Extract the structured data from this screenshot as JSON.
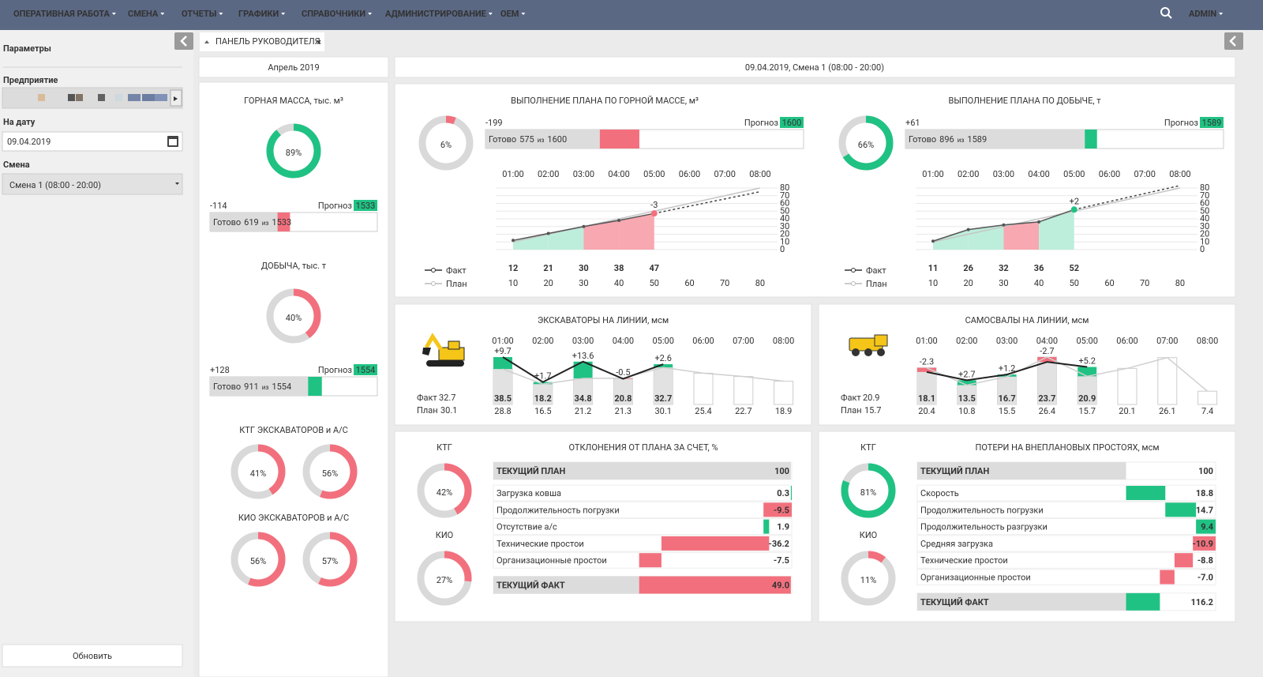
{
  "nav": {
    "items": [
      "ОПЕРАТИВНАЯ РАБОТА",
      "СМЕНА",
      "ОТЧЕТЫ",
      "ГРАФИКИ",
      "СПРАВОЧНИКИ",
      "АДМИНИСТРИРОВАНИЕ",
      "OEM"
    ],
    "user": "ADMIN"
  },
  "sidebar": {
    "title": "Параметры",
    "enterprise_label": "Предприятие",
    "date_label": "На дату",
    "date": "09.04.2019",
    "shift_label": "Смена",
    "shift": "Смена 1 (08:00 - 20:00)",
    "button": "Обновить"
  },
  "tab": "ПАНЕЛЬ РУКОВОДИТЕЛЯ",
  "month_header": "Апрель 2019",
  "shift_header": "09.04.2019, Смена 1 (08:00 - 20:00)",
  "summary": {
    "rock_mass": {
      "title": "ГОРНАЯ МАССА, тыс. м³",
      "percent": {
        "value": 89,
        "label": "89%"
      },
      "color": "#20c283",
      "deviation": -114,
      "forecast_label": "Прогноз",
      "forecast": 1533,
      "ready_label": "Готово",
      "ready": 619,
      "of_label": "из",
      "plan": 1533
    },
    "production": {
      "title": "ДОБЫЧА, тыс. т",
      "percent": {
        "value": 40,
        "label": "40%"
      },
      "color": "#f2707d",
      "deviation": {
        "value": 128,
        "label": "+128"
      },
      "forecast_label": "Прогноз",
      "forecast": 1554,
      "ready_label": "Готово",
      "ready": 911,
      "of_label": "из",
      "plan": 1554
    },
    "ktg": {
      "title": "КТГ ЭКСКАВАТОРОВ и А/С",
      "values": [
        {
          "value": 41,
          "label": "41%"
        },
        {
          "value": 56,
          "label": "56%"
        }
      ],
      "colors": [
        "#f2707d",
        "#f2707d"
      ]
    },
    "kio": {
      "title": "КИО ЭКСКАВАТОРОВ и А/С",
      "values": [
        {
          "value": 56,
          "label": "56%"
        },
        {
          "value": 57,
          "label": "57%"
        }
      ],
      "colors": [
        "#f2707d",
        "#f2707d"
      ]
    }
  },
  "plan_charts": [
    {
      "title": "ВЫПОЛНЕНИЕ ПЛАНА ПО ГОРНОЙ МАССЕ, м³",
      "percent": {
        "value": 6,
        "label": "6%"
      },
      "color": "#f2707d",
      "deviation": -199,
      "forecast_label": "Прогноз",
      "forecast": 1600,
      "ready_label": "Готово",
      "ready": 575,
      "of_label": "из",
      "plan": 1600,
      "hours": [
        "01:00",
        "02:00",
        "03:00",
        "04:00",
        "05:00",
        "06:00",
        "07:00",
        "08:00"
      ],
      "ylim": [
        0,
        80
      ],
      "yticks": [
        0,
        10,
        20,
        30,
        40,
        50,
        60,
        70,
        80
      ],
      "fact": [
        12,
        21,
        30,
        38,
        47,
        null,
        null,
        null
      ],
      "plan_values": [
        10,
        20,
        30,
        40,
        50,
        60,
        70,
        80
      ],
      "annotation": -3,
      "legend_fact": "Факт",
      "legend_plan": "План"
    },
    {
      "title": "ВЫПОЛНЕНИЕ ПЛАНА ПО ДОБЫЧЕ, т",
      "percent": {
        "value": 66,
        "label": "66%"
      },
      "color": "#20c283",
      "deviation": {
        "value": 61,
        "label": "+61"
      },
      "forecast_label": "Прогноз",
      "forecast": 1589,
      "ready_label": "Готово",
      "ready": 896,
      "of_label": "из",
      "plan": 1589,
      "hours": [
        "01:00",
        "02:00",
        "03:00",
        "04:00",
        "05:00",
        "06:00",
        "07:00",
        "08:00"
      ],
      "ylim": [
        0,
        80
      ],
      "yticks": [
        0,
        10,
        20,
        30,
        40,
        50,
        60,
        70,
        80
      ],
      "fact": [
        11,
        26,
        32,
        36,
        52,
        null,
        null,
        null
      ],
      "plan_values": [
        10,
        20,
        30,
        40,
        50,
        60,
        70,
        80
      ],
      "annotation": {
        "value": 2,
        "label": "+2"
      },
      "legend_fact": "Факт",
      "legend_plan": "План"
    }
  ],
  "line_charts": [
    {
      "title": "ЭКСКАВАТОРЫ НА ЛИНИИ, мсм",
      "fact_label": "Факт",
      "fact_total": 32.7,
      "plan_label": "План",
      "plan_total": 30.1,
      "hours": [
        "01:00",
        "02:00",
        "03:00",
        "04:00",
        "05:00",
        "06:00",
        "07:00",
        "08:00"
      ],
      "fact": [
        38.5,
        18.2,
        34.8,
        20.8,
        32.7,
        null,
        null,
        null
      ],
      "plan": [
        28.8,
        16.5,
        21.2,
        21.3,
        30.1,
        25.4,
        22.7,
        18.9
      ],
      "deviations": [
        {
          "value": 9.7,
          "label": "+9.7"
        },
        {
          "value": 1.7,
          "label": "+1.7"
        },
        {
          "value": 13.6,
          "label": "+13.6"
        },
        -0.5,
        {
          "value": 2.6,
          "label": "+2.6"
        },
        null,
        null,
        null
      ]
    },
    {
      "title": "САМОСВАЛЫ НА ЛИНИИ, мсм",
      "fact_label": "Факт",
      "fact_total": 20.9,
      "plan_label": "План",
      "plan_total": 15.7,
      "hours": [
        "01:00",
        "02:00",
        "03:00",
        "04:00",
        "05:00",
        "06:00",
        "07:00",
        "08:00"
      ],
      "fact": [
        18.1,
        13.5,
        16.7,
        23.7,
        20.9,
        null,
        null,
        null
      ],
      "plan": [
        20.4,
        10.8,
        15.5,
        26.4,
        15.7,
        20.1,
        26.1,
        7.4
      ],
      "deviations": [
        -2.3,
        {
          "value": 2.7,
          "label": "+2.7"
        },
        {
          "value": 1.2,
          "label": "+1.2"
        },
        -2.7,
        {
          "value": 5.2,
          "label": "+5.2"
        },
        null,
        null,
        null
      ]
    }
  ],
  "waterfalls": [
    {
      "title": "ОТКЛОНЕНИЯ ОТ ПЛАНА ЗА СЧЕТ, %",
      "ktg_label": "КТГ",
      "ktg": {
        "value": 42,
        "label": "42%"
      },
      "ktg_color": "#f2707d",
      "kio_label": "КИО",
      "kio": {
        "value": 27,
        "label": "27%"
      },
      "kio_color": "#f2707d",
      "rows": [
        {
          "label": "ТЕКУЩИЙ ПЛАН",
          "value": 100
        },
        {
          "label": "Загрузка ковша",
          "value": 0.3
        },
        {
          "label": "Продолжительность погрузки",
          "value": -9.5
        },
        {
          "label": "Отсутствие а/с",
          "value": 1.9
        },
        {
          "label": "Технические простои",
          "value": -36.2
        },
        {
          "label": "Организационные простои",
          "value": -7.5
        },
        {
          "label": "ТЕКУЩИЙ ФАКТ",
          "value": {
            "value": 49,
            "label": "49.0"
          }
        }
      ]
    },
    {
      "title": "ПОТЕРИ НА ВНЕПЛАНОВЫХ ПРОСТОЯХ, мсм",
      "ktg_label": "КТГ",
      "ktg": {
        "value": 81,
        "label": "81%"
      },
      "ktg_color": "#20c283",
      "kio_label": "КИО",
      "kio": {
        "value": 11,
        "label": "11%"
      },
      "kio_color": "#f2707d",
      "rows": [
        {
          "label": "ТЕКУЩИЙ ПЛАН",
          "value": 100
        },
        {
          "label": "Скорость",
          "value": 18.8
        },
        {
          "label": "Продолжительность погрузки",
          "value": 14.7
        },
        {
          "label": "Продолжительность разгрузки",
          "value": 9.4
        },
        {
          "label": "Средняя загрузка",
          "value": -10.9
        },
        {
          "label": "Технические простои",
          "value": -8.8
        },
        {
          "label": "Организационные простои",
          "value": {
            "value": -7,
            "label": "-7.0"
          }
        },
        {
          "label": "ТЕКУЩИЙ ФАКТ",
          "value": 116.2
        }
      ]
    }
  ]
}
